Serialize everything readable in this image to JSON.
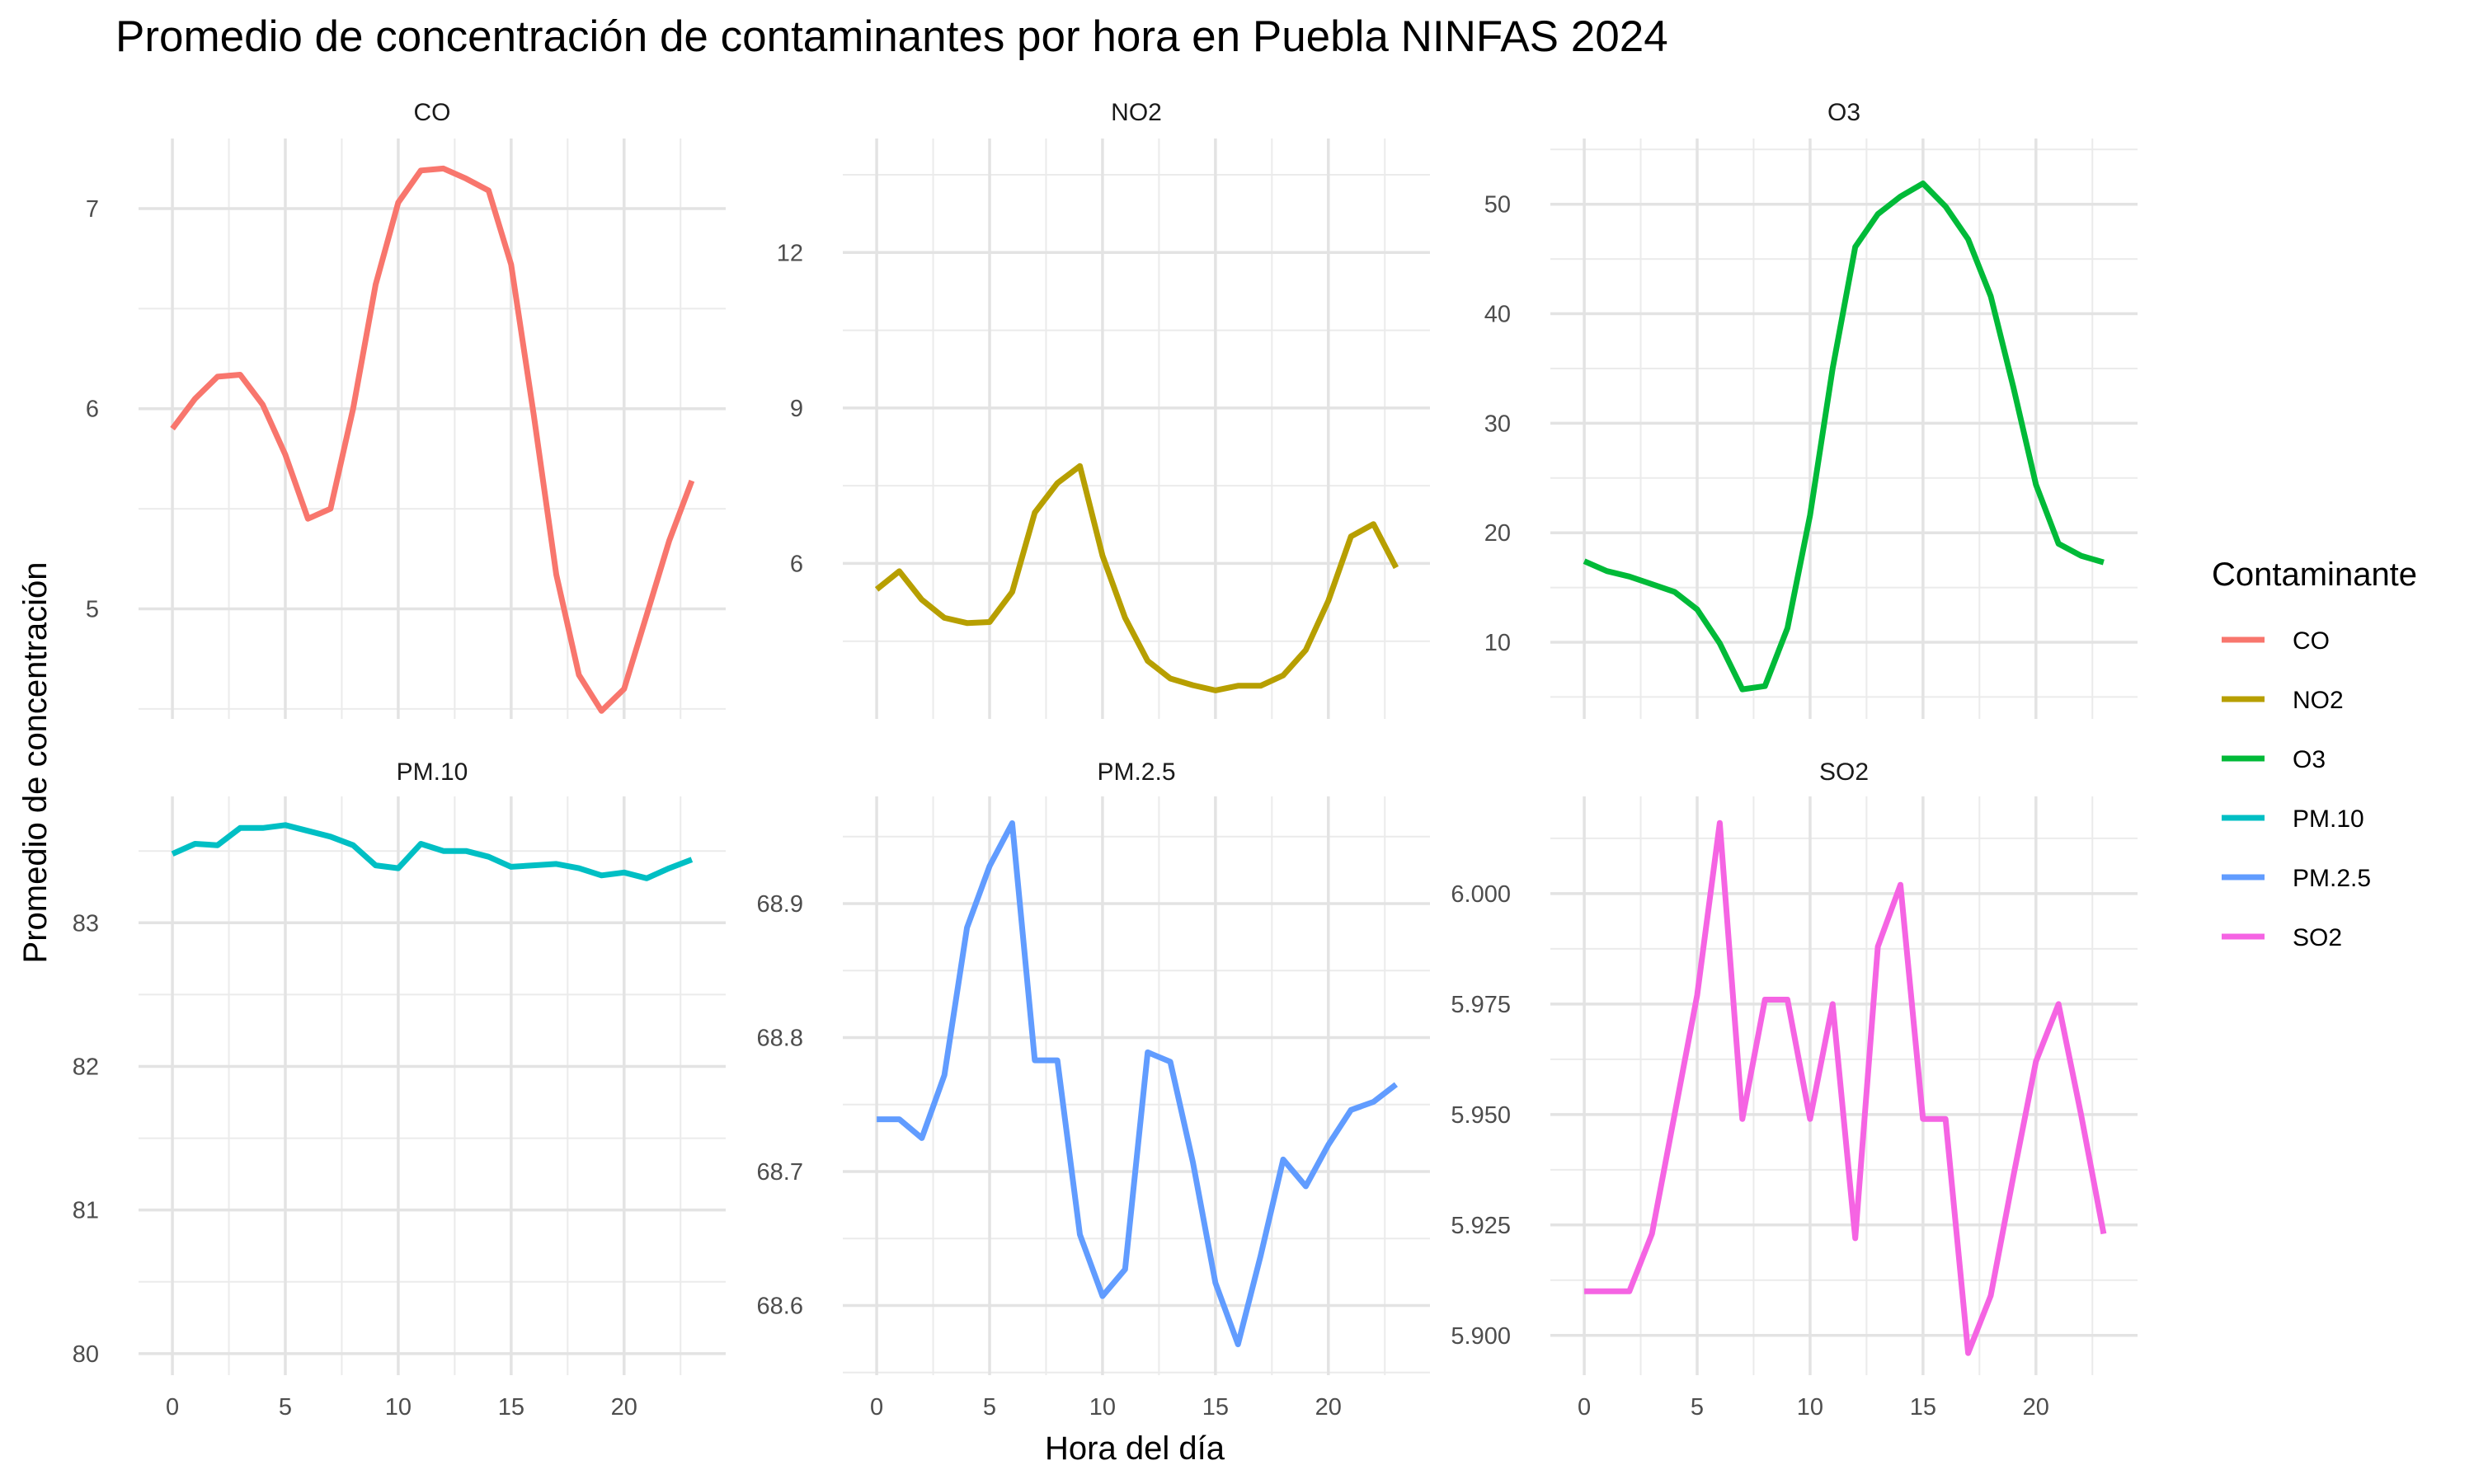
{
  "chart_data": {
    "type": "line",
    "title": "Promedio de concentración de contaminantes por hora en Puebla NINFAS 2024",
    "xlabel": "Hora del día",
    "ylabel": "Promedio de concentración",
    "legend_title": "Contaminante",
    "legend_position": "right",
    "grid": true,
    "x_ticks": [
      0,
      5,
      10,
      15,
      20
    ],
    "x": [
      0,
      1,
      2,
      3,
      4,
      5,
      6,
      7,
      8,
      9,
      10,
      11,
      12,
      13,
      14,
      15,
      16,
      17,
      18,
      19,
      20,
      21,
      22,
      23
    ],
    "xlim": [
      -1.5,
      24.5
    ],
    "series": [
      {
        "name": "CO",
        "color": "#F8766D",
        "ylim": [
          4.45,
          7.35
        ],
        "y_ticks": [
          5,
          6,
          7
        ],
        "y_tick_labels": [
          "5",
          "6",
          "7"
        ],
        "values": [
          5.9,
          6.05,
          6.16,
          6.17,
          6.02,
          5.77,
          5.45,
          5.5,
          6.0,
          6.62,
          7.03,
          7.19,
          7.2,
          7.15,
          7.09,
          6.72,
          5.97,
          5.17,
          4.67,
          4.49,
          4.6,
          4.97,
          5.34,
          5.64
        ]
      },
      {
        "name": "NO2",
        "color": "#B79F00",
        "ylim": [
          3.0,
          14.2
        ],
        "y_ticks": [
          6,
          9,
          12
        ],
        "y_tick_labels": [
          "6",
          "9",
          "12"
        ],
        "values": [
          5.5,
          5.85,
          5.3,
          4.95,
          4.85,
          4.87,
          5.45,
          6.98,
          7.55,
          7.88,
          6.15,
          4.95,
          4.12,
          3.78,
          3.65,
          3.55,
          3.64,
          3.64,
          3.84,
          4.33,
          5.28,
          6.52,
          6.76,
          5.92
        ]
      },
      {
        "name": "O3",
        "color": "#00BA38",
        "ylim": [
          3.0,
          56.0
        ],
        "y_ticks": [
          10,
          20,
          30,
          40,
          50
        ],
        "y_tick_labels": [
          "10",
          "20",
          "30",
          "40",
          "50"
        ],
        "values": [
          17.4,
          16.5,
          16.0,
          15.3,
          14.6,
          13.0,
          9.9,
          5.7,
          6.0,
          11.3,
          21.6,
          35.0,
          46.1,
          49.1,
          50.7,
          51.9,
          49.8,
          46.8,
          41.6,
          33.3,
          24.4,
          19.0,
          17.9,
          17.3
        ]
      },
      {
        "name": "PM.10",
        "color": "#00BFC4",
        "ylim": [
          79.85,
          83.88
        ],
        "y_ticks": [
          80,
          81,
          82,
          83
        ],
        "y_tick_labels": [
          "80",
          "81",
          "82",
          "83"
        ],
        "values": [
          83.48,
          83.55,
          83.54,
          83.66,
          83.66,
          83.68,
          83.64,
          83.6,
          83.54,
          83.4,
          83.38,
          83.55,
          83.5,
          83.5,
          83.46,
          83.39,
          83.4,
          83.41,
          83.38,
          83.33,
          83.35,
          83.31,
          83.38,
          83.44
        ]
      },
      {
        "name": "PM.2.5",
        "color": "#619CFF",
        "ylim": [
          68.548,
          68.98
        ],
        "y_ticks": [
          68.6,
          68.7,
          68.8,
          68.9
        ],
        "y_tick_labels": [
          "68.6",
          "68.7",
          "68.8",
          "68.9"
        ],
        "values": [
          68.739,
          68.739,
          68.725,
          68.772,
          68.882,
          68.928,
          68.96,
          68.783,
          68.783,
          68.653,
          68.607,
          68.627,
          68.789,
          68.782,
          68.707,
          68.617,
          68.571,
          68.637,
          68.709,
          68.689,
          68.72,
          68.746,
          68.752,
          68.765
        ]
      },
      {
        "name": "SO2",
        "color": "#F564E3",
        "ylim": [
          5.891,
          6.022
        ],
        "y_ticks": [
          5.9,
          5.925,
          5.95,
          5.975,
          6.0
        ],
        "y_tick_labels": [
          "5.900",
          "5.925",
          "5.950",
          "5.975",
          "6.000"
        ],
        "values": [
          5.91,
          5.91,
          5.91,
          5.923,
          5.95,
          5.977,
          6.016,
          5.949,
          5.976,
          5.976,
          5.949,
          5.975,
          5.922,
          5.988,
          6.002,
          5.949,
          5.949,
          5.896,
          5.909,
          5.936,
          5.962,
          5.975,
          5.95,
          5.923
        ]
      }
    ]
  }
}
